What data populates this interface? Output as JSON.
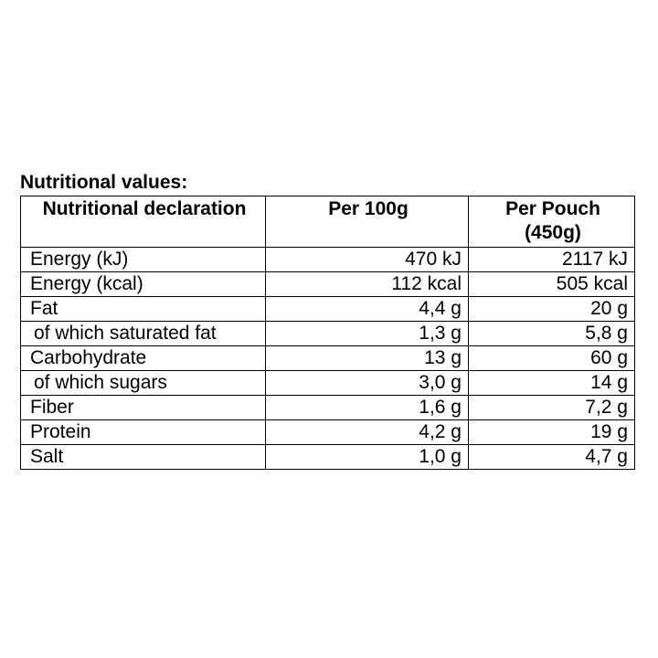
{
  "caption": "Nutritional values:",
  "headers": {
    "col1": "Nutritional declaration",
    "col2": "Per 100g",
    "col3": "Per Pouch (450g)"
  },
  "rows": [
    {
      "label": "Energy (kJ)",
      "per100": "470 kJ",
      "perPouch": "2117 kJ"
    },
    {
      "label": "Energy (kcal)",
      "per100": "112 kcal",
      "perPouch": "505 kcal"
    },
    {
      "label": "Fat",
      "per100": "4,4 g",
      "perPouch": "20 g"
    },
    {
      "label": "of which saturated fat",
      "per100": "1,3 g",
      "perPouch": "5,8 g"
    },
    {
      "label": "Carbohydrate",
      "per100": "13 g",
      "perPouch": "60 g"
    },
    {
      "label": "of which sugars",
      "per100": "3,0 g",
      "perPouch": "14 g"
    },
    {
      "label": "Fiber",
      "per100": "1,6 g",
      "perPouch": "7,2 g"
    },
    {
      "label": "Protein",
      "per100": "4,2 g",
      "perPouch": "19 g"
    },
    {
      "label": "Salt",
      "per100": "1,0 g",
      "perPouch": "4,7 g"
    }
  ]
}
